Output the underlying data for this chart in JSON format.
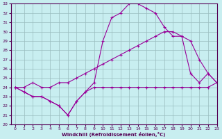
{
  "xlabel": "Windchill (Refroidissement éolien,°C)",
  "ylabel": "",
  "xlim": [
    -0.5,
    23
  ],
  "ylim": [
    20,
    33
  ],
  "yticks": [
    20,
    21,
    22,
    23,
    24,
    25,
    26,
    27,
    28,
    29,
    30,
    31,
    32,
    33
  ],
  "xticks": [
    0,
    1,
    2,
    3,
    4,
    5,
    6,
    7,
    8,
    9,
    10,
    11,
    12,
    13,
    14,
    15,
    16,
    17,
    18,
    19,
    20,
    21,
    22,
    23
  ],
  "bg_color": "#c8eef0",
  "line_color": "#990099",
  "grid_color": "#9abcbe",
  "line1_x": [
    0,
    1,
    2,
    3,
    4,
    5,
    6,
    7,
    8,
    9,
    10,
    11,
    12,
    13,
    14,
    15,
    16,
    17,
    18,
    19,
    20,
    21,
    22,
    23
  ],
  "line1_y": [
    24.0,
    23.5,
    23.0,
    23.0,
    22.5,
    22.0,
    21.0,
    22.5,
    23.5,
    24.0,
    24.0,
    24.0,
    24.0,
    24.0,
    24.0,
    24.0,
    24.0,
    24.0,
    24.0,
    24.0,
    24.0,
    24.0,
    24.0,
    24.5
  ],
  "line2_x": [
    0,
    1,
    2,
    3,
    4,
    5,
    6,
    7,
    8,
    9,
    10,
    11,
    12,
    13,
    14,
    15,
    16,
    17,
    18,
    19,
    20,
    21,
    22,
    23
  ],
  "line2_y": [
    24.0,
    23.5,
    23.0,
    23.0,
    22.5,
    22.0,
    21.0,
    22.5,
    23.5,
    24.5,
    29.0,
    31.5,
    32.0,
    33.0,
    33.0,
    32.5,
    32.0,
    30.5,
    29.5,
    29.5,
    25.5,
    24.5,
    25.5,
    24.5
  ],
  "line3_x": [
    0,
    1,
    2,
    3,
    4,
    5,
    6,
    7,
    8,
    9,
    10,
    11,
    12,
    13,
    14,
    15,
    16,
    17,
    18,
    19,
    20,
    21,
    22,
    23
  ],
  "line3_y": [
    24.0,
    24.0,
    24.5,
    24.0,
    24.0,
    24.5,
    24.5,
    25.0,
    25.5,
    26.0,
    26.5,
    27.0,
    27.5,
    28.0,
    28.5,
    29.0,
    29.5,
    30.0,
    30.0,
    29.5,
    29.0,
    27.0,
    25.5,
    24.5
  ]
}
